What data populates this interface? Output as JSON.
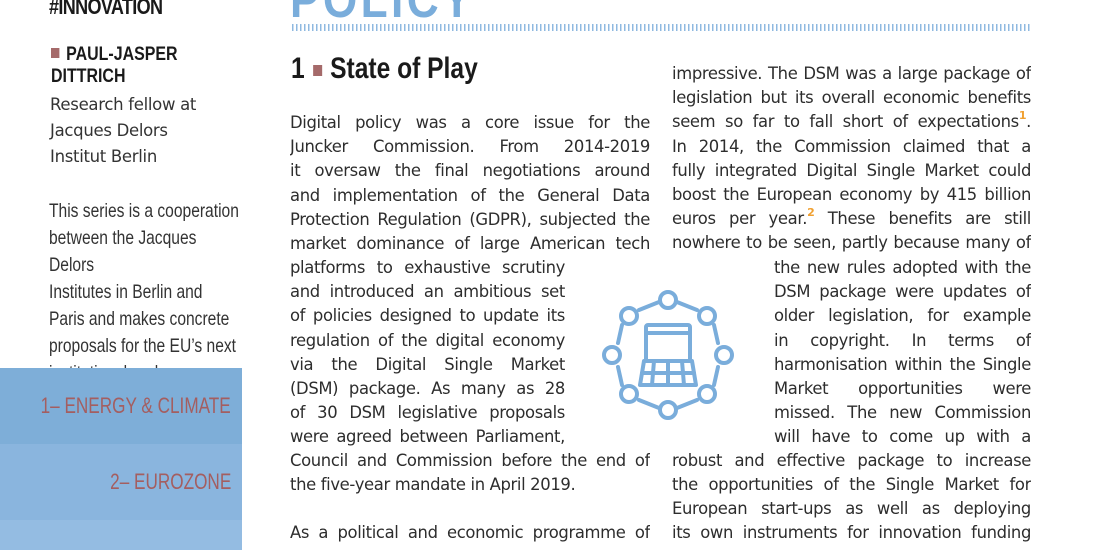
{
  "sidebar": {
    "tag": "#INNOVATION",
    "author_line1": "PAUL-JASPER",
    "author_line2": "DITTRICH",
    "bio": [
      "Research fellow at",
      "Jacques Delors",
      "Institut Berlin"
    ],
    "series": [
      "This series is a cooperation",
      "between the Jacques Delors",
      "Institutes in Berlin and",
      "Paris and makes concrete",
      "proposals for the EU’s next",
      "institutional cycle."
    ],
    "nav": [
      {
        "label": "1– ENERGY & CLIMATE"
      },
      {
        "label": "2– EUROZONE"
      }
    ],
    "colors": {
      "accent_square": "#a56a6a",
      "nav_text": "#a45e60",
      "nav_bg": "#7eaed8"
    }
  },
  "header": {
    "title": "POLICY",
    "color": "#7aaddb"
  },
  "section": {
    "number": "1",
    "title": "State of Play"
  },
  "column1": {
    "lines_top": [
      "Digital policy was a core issue for the",
      "Juncker Commission. From 2014-2019",
      "it oversaw the final negotiations around",
      "and implementation of the General Data",
      "Protection Regulation (GDPR), subjected the",
      "market dominance of large American tech"
    ],
    "lines_narrow": [
      "platforms to exhaustive scrutiny",
      "and introduced an ambitious set",
      "of policies designed to update its",
      "regulation of the digital economy",
      "via the Digital Single Market",
      "(DSM) package. As many as 28",
      "of 30 DSM legislative proposals",
      "were agreed between Parliament,"
    ],
    "lines_bottom": [
      "Council and Commission before the end of",
      "the five-year mandate in April 2019."
    ],
    "cutoff_line": "As a political and economic programme of"
  },
  "column2": {
    "lines_top": [
      "impressive. The DSM was a large package of",
      "legislation but its overall economic benefits",
      "seem so far to fall short of expectations",
      "In 2014, the Commission claimed that a",
      "fully integrated Digital Single Market could",
      "boost the European economy by 415 billion",
      "euros per year.",
      "These benefits are still",
      "nowhere to be seen, partly because many of"
    ],
    "footnote1": "1",
    "footnote2": "2",
    "lines_narrow": [
      "the new rules adopted with the",
      "DSM package were updates of",
      "older legislation, for example",
      "in copyright. In terms of",
      "harmonisation within the Single",
      "Market opportunities were",
      "missed. The new Commission",
      "will have to come up with a"
    ],
    "lines_bottom": [
      "robust and effective package to increase",
      "the opportunities of the Single Market for",
      "European start-ups as well as deploying"
    ],
    "cutoff_line": "its own instruments for innovation funding"
  },
  "icon": {
    "name": "digital-network-laptop-icon",
    "color": "#7aaddb"
  },
  "footnote_color": "#f0a030"
}
